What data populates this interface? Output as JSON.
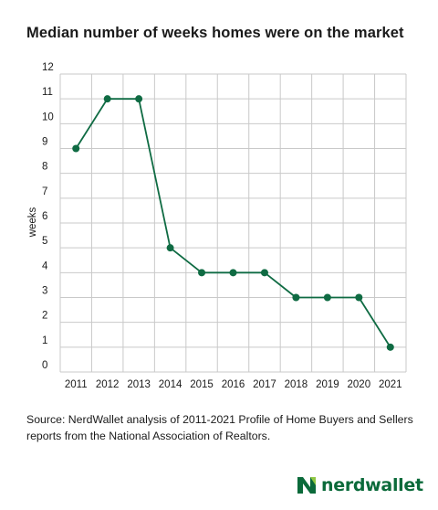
{
  "chart_data": {
    "type": "line",
    "title": "Median number of weeks homes were on the market",
    "xlabel": "",
    "ylabel": "weeks",
    "categories": [
      "2011",
      "2012",
      "2013",
      "2014",
      "2015",
      "2016",
      "2017",
      "2018",
      "2019",
      "2020",
      "2021"
    ],
    "values": [
      9,
      11,
      11,
      5,
      4,
      4,
      4,
      3,
      3,
      3,
      1
    ],
    "ylim": [
      0,
      12
    ],
    "yticks": [
      "0",
      "1",
      "2",
      "3",
      "4",
      "5",
      "6",
      "7",
      "8",
      "9",
      "10",
      "11",
      "12"
    ],
    "grid": true,
    "legend": "none",
    "line_color": "#0f6b43",
    "grid_color": "#c9c9c9"
  },
  "source": "Source: NerdWallet analysis of 2011-2021 Profile of Home Buyers and Sellers reports from the National Association of Realtors.",
  "logo": {
    "text": "nerdwallet",
    "icon": "nerdwallet-logo-icon",
    "color": "#0b6a3a"
  }
}
